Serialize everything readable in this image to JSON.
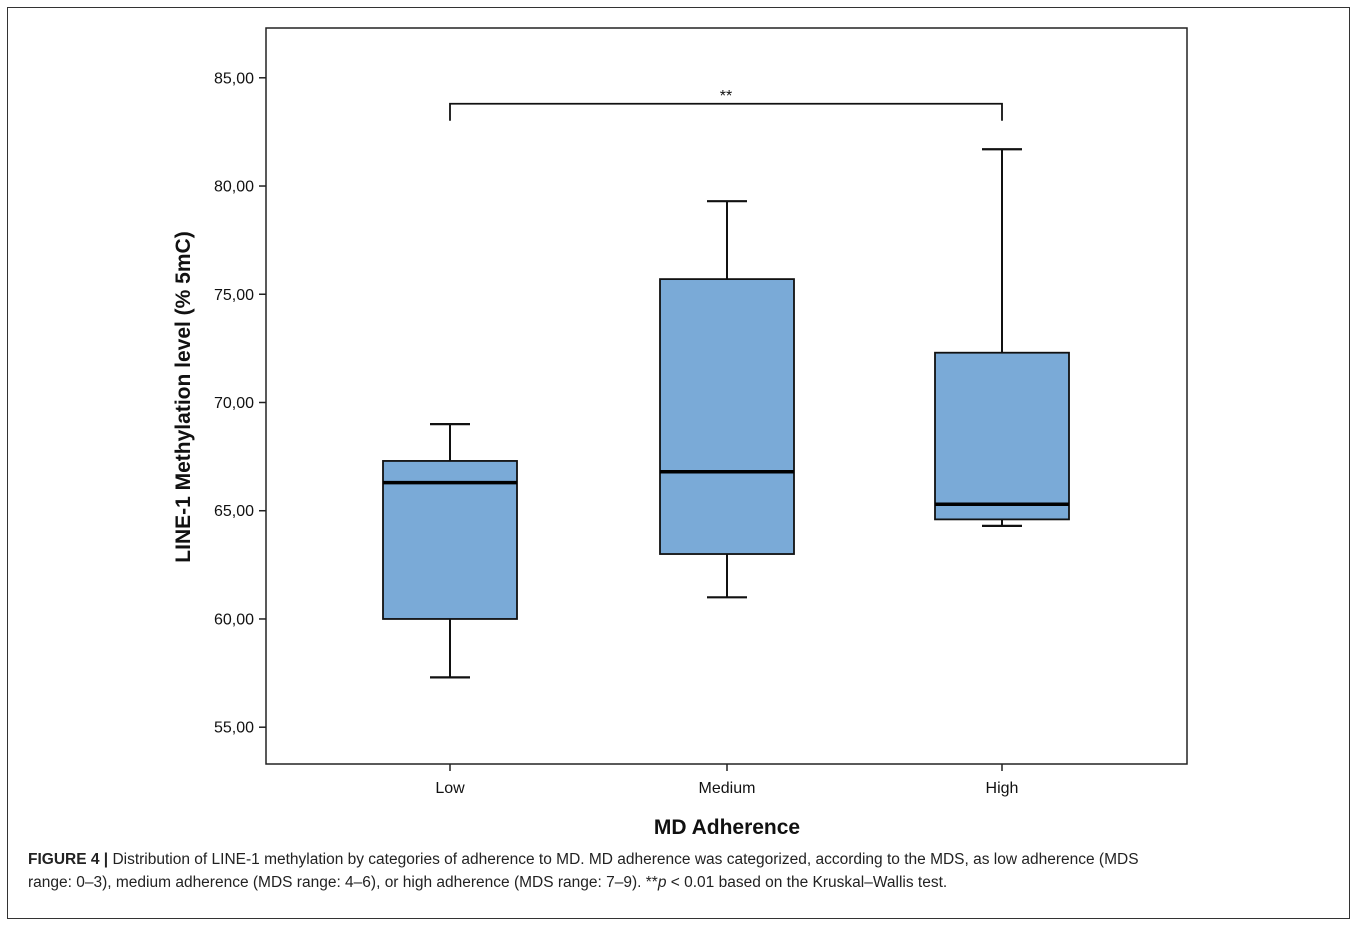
{
  "chart_data": {
    "type": "box",
    "categories": [
      "Low",
      "Medium",
      "High"
    ],
    "boxes": [
      {
        "category": "Low",
        "min": 57.3,
        "q1": 60.0,
        "median": 66.3,
        "q3": 67.3,
        "max": 69.0
      },
      {
        "category": "Medium",
        "min": 61.0,
        "q1": 63.0,
        "median": 66.8,
        "q3": 75.7,
        "max": 79.3
      },
      {
        "category": "High",
        "min": 64.3,
        "q1": 64.6,
        "median": 65.3,
        "q3": 72.3,
        "max": 81.7
      }
    ],
    "xlabel": "MD Adherence",
    "ylabel": "LINE-1 Methylation level (% 5mC)",
    "ylim": [
      53.3,
      87.3
    ],
    "yticks": [
      55,
      60,
      65,
      70,
      75,
      80,
      85
    ],
    "ytick_labels": [
      "55,00",
      "60,00",
      "65,00",
      "70,00",
      "75,00",
      "80,00",
      "85,00"
    ],
    "significance": {
      "from": "Low",
      "to": "High",
      "label": "**",
      "y": 83.8
    },
    "box_color": "#7aaad7",
    "grid": false
  },
  "caption": {
    "label": "FIGURE 4 |",
    "line1": " Distribution of LINE-1 methylation by categories of adherence to MD. MD adherence was categorized, according to the MDS, as low adherence (MDS",
    "line2_a": "range: 0–3), medium adherence (MDS range: 4–6), or high adherence (MDS range: 7–9). **",
    "line2_p": "p",
    "line2_b": " < 0.01 based on the Kruskal–Wallis test."
  }
}
